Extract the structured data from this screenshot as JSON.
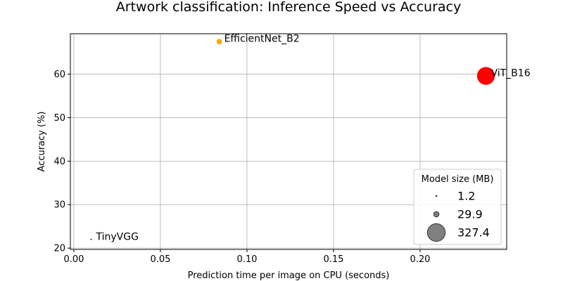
{
  "chart_data": {
    "type": "scatter",
    "title": "Artwork classification: Inference Speed vs Accuracy",
    "xlabel": "Prediction time per image on CPU (seconds)",
    "ylabel": "Accuracy (%)",
    "xlim": [
      -0.002,
      0.25
    ],
    "ylim": [
      19.7,
      69.3
    ],
    "xticks": [
      0.0,
      0.05,
      0.1,
      0.15,
      0.2
    ],
    "xtick_labels": [
      "0.00",
      "0.05",
      "0.10",
      "0.15",
      "0.20"
    ],
    "yticks": [
      20,
      30,
      40,
      50,
      60
    ],
    "ytick_labels": [
      "20",
      "30",
      "40",
      "50",
      "60"
    ],
    "grid": true,
    "points": [
      {
        "label": "TinyVGG",
        "x": 0.01,
        "y": 22.0,
        "size_mb": 1.2,
        "color": "#0000ff"
      },
      {
        "label": "EfficientNet_B2",
        "x": 0.084,
        "y": 67.5,
        "size_mb": 29.9,
        "color": "#ffa500"
      },
      {
        "label": "ViT_B16",
        "x": 0.238,
        "y": 59.6,
        "size_mb": 327.4,
        "color": "#ff0000"
      }
    ],
    "legend": {
      "title": "Model size (MB)",
      "placement": "lower right",
      "entries": [
        {
          "label": "1.2",
          "size_mb": 1.2
        },
        {
          "label": "29.9",
          "size_mb": 29.9
        },
        {
          "label": "327.4",
          "size_mb": 327.4
        }
      ],
      "marker_color": "#808080"
    }
  }
}
